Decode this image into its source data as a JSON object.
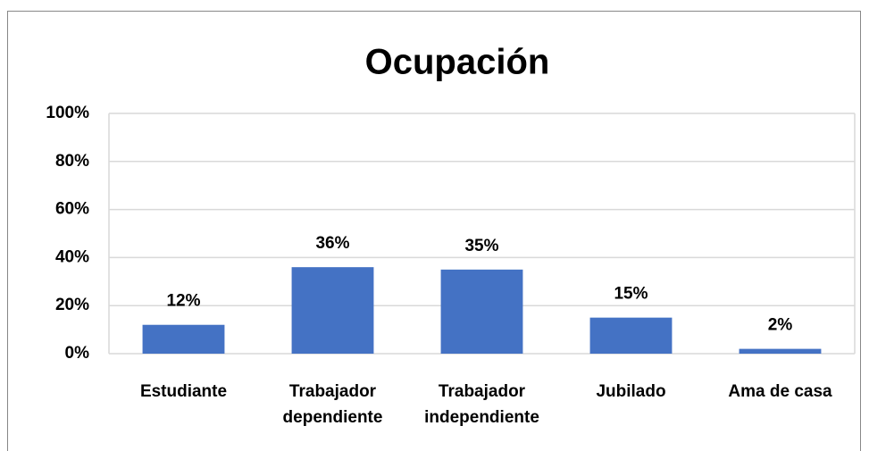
{
  "chart_data": {
    "type": "bar",
    "title": "Ocupación",
    "categories": [
      "Estudiante",
      "Trabajador dependiente",
      "Trabajador independiente",
      "Jubilado",
      "Ama de casa"
    ],
    "values": [
      12,
      36,
      35,
      15,
      2
    ],
    "value_labels": [
      "12%",
      "36%",
      "35%",
      "15%",
      "2%"
    ],
    "color": "#4472c4",
    "ylim": [
      0,
      100
    ],
    "yticks": [
      {
        "value": 0,
        "label": "0%"
      },
      {
        "value": 20,
        "label": "20%"
      },
      {
        "value": 40,
        "label": "40%"
      },
      {
        "value": 60,
        "label": "60%"
      },
      {
        "value": 80,
        "label": "80%"
      },
      {
        "value": 100,
        "label": "100%"
      }
    ],
    "grid": true
  }
}
